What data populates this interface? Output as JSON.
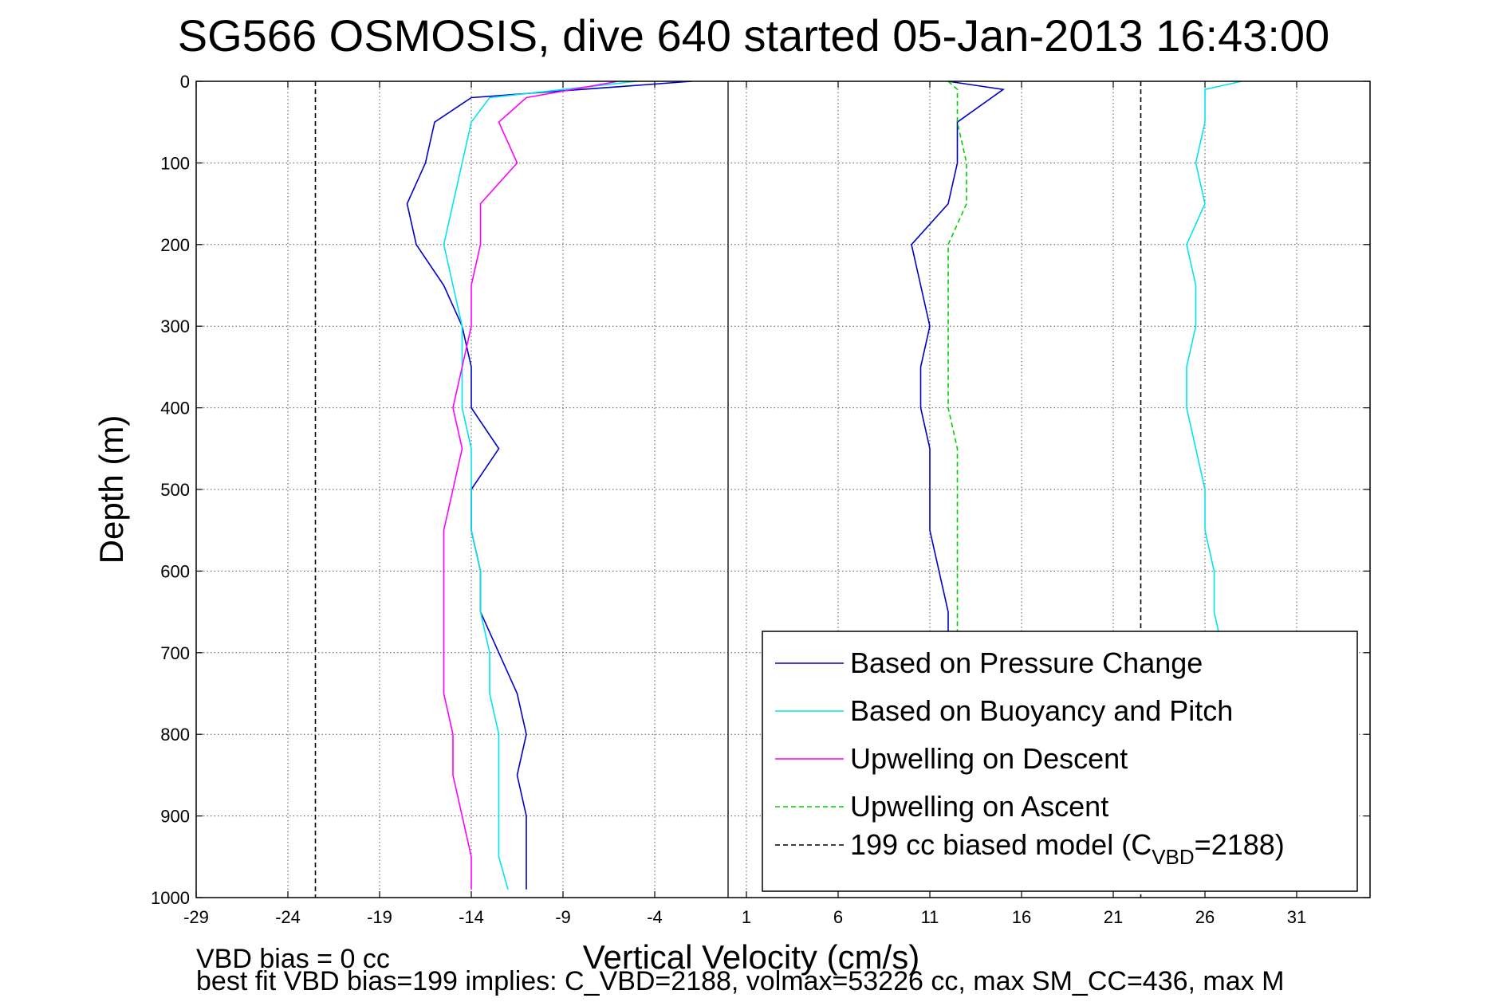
{
  "chart_data": {
    "type": "line",
    "title": "SG566 OSMOSIS, dive 640 started 05-Jan-2013 16:43:00",
    "xlabel": "Vertical Velocity (cm/s)",
    "ylabel": "Depth (m)",
    "xlim": [
      -29,
      35
    ],
    "ylim": [
      0,
      1000
    ],
    "y_reversed": true,
    "grid": true,
    "xticks": [
      -29,
      -24,
      -19,
      -14,
      -9,
      -4,
      1,
      6,
      11,
      16,
      21,
      26,
      31
    ],
    "yticks": [
      0,
      100,
      200,
      300,
      400,
      500,
      600,
      700,
      800,
      900,
      1000
    ],
    "legend_position": "bottom-right",
    "legend": {
      "pressure": "Based on Pressure Change",
      "buoyancy": "Based on Buoyancy and Pitch",
      "up_descent": "Upwelling on Descent",
      "up_ascent": "Upwelling on Ascent",
      "model_prefix": "199 cc biased model (C",
      "model_sub": "VBD",
      "model_suffix": "=2188)"
    },
    "series": [
      {
        "key": "pressure_descent",
        "legend_key": "pressure",
        "color": "#0000c8",
        "style": "solid",
        "depth": [
          0,
          20,
          50,
          100,
          150,
          200,
          250,
          300,
          350,
          400,
          450,
          500,
          550,
          600,
          650,
          700,
          750,
          800,
          850,
          900,
          950,
          990
        ],
        "velocity": [
          -2,
          -14,
          -16,
          -16.5,
          -17.5,
          -17,
          -15.5,
          -14.5,
          -14,
          -14,
          -12.5,
          -14,
          -14,
          -13.5,
          -13.5,
          -12.5,
          -11.5,
          -11,
          -11.5,
          -11,
          -11,
          -11
        ]
      },
      {
        "key": "pressure_ascent",
        "legend_key": "pressure",
        "color": "#0000c8",
        "style": "solid",
        "depth": [
          0,
          10,
          50,
          100,
          150,
          200,
          250,
          300,
          350,
          400,
          450,
          500,
          550,
          600,
          650,
          700,
          750,
          800,
          850,
          900,
          950,
          990
        ],
        "velocity": [
          12,
          15,
          12.5,
          12.5,
          12,
          10,
          10.5,
          11,
          10.5,
          10.5,
          11,
          11,
          11,
          11.5,
          12,
          12,
          12,
          12.5,
          13,
          13.5,
          14,
          14
        ]
      },
      {
        "key": "buoyancy_descent",
        "legend_key": "buoyancy",
        "color": "#00e5ee",
        "style": "solid",
        "depth": [
          0,
          20,
          50,
          100,
          150,
          200,
          250,
          300,
          350,
          400,
          450,
          500,
          550,
          600,
          650,
          700,
          750,
          800,
          850,
          900,
          950,
          990
        ],
        "velocity": [
          -5,
          -13,
          -14,
          -14.5,
          -15,
          -15.5,
          -15,
          -14.5,
          -14.5,
          -14.5,
          -14,
          -14,
          -14,
          -13.5,
          -13.5,
          -13,
          -13,
          -12.5,
          -12.5,
          -12.5,
          -12.5,
          -12
        ]
      },
      {
        "key": "buoyancy_ascent",
        "legend_key": "buoyancy",
        "color": "#00e5ee",
        "style": "solid",
        "depth": [
          0,
          10,
          50,
          100,
          150,
          200,
          250,
          300,
          350,
          400,
          450,
          500,
          550,
          600,
          650,
          700,
          750,
          800,
          850,
          900,
          950,
          990
        ],
        "velocity": [
          28,
          26,
          26,
          25.5,
          26,
          25,
          25.5,
          25.5,
          25,
          25,
          25.5,
          26,
          26,
          26.5,
          26.5,
          27,
          27,
          27,
          27,
          27,
          27,
          27
        ]
      },
      {
        "key": "up_descent",
        "legend_key": "up_descent",
        "color": "#ff00ff",
        "style": "solid",
        "depth": [
          0,
          20,
          50,
          100,
          150,
          200,
          250,
          300,
          350,
          400,
          450,
          500,
          550,
          600,
          650,
          700,
          750,
          800,
          850,
          900,
          950,
          990
        ],
        "velocity": [
          -6,
          -11,
          -12.5,
          -11.5,
          -13.5,
          -13.5,
          -14,
          -14,
          -14.5,
          -15,
          -14.5,
          -15,
          -15.5,
          -15.5,
          -15.5,
          -15.5,
          -15.5,
          -15,
          -15,
          -14.5,
          -14,
          -14
        ]
      },
      {
        "key": "up_ascent",
        "legend_key": "up_ascent",
        "color": "#00d000",
        "style": "dashed",
        "depth": [
          0,
          10,
          50,
          100,
          150,
          200,
          250,
          300,
          350,
          400,
          450,
          500,
          550,
          600,
          650,
          700,
          750,
          800,
          850,
          900,
          950,
          990
        ],
        "velocity": [
          12,
          12.5,
          12.5,
          13,
          13,
          12,
          12,
          12,
          12,
          12,
          12.5,
          12.5,
          12.5,
          12.5,
          12.5,
          12.5,
          12.5,
          12.5,
          12.5,
          12.5,
          12.5,
          12.5
        ]
      },
      {
        "key": "model_neg",
        "legend_key": "model",
        "color": "#000000",
        "style": "dashed",
        "depth": [
          0,
          1000
        ],
        "velocity": [
          -22.5,
          -22.5
        ]
      },
      {
        "key": "model_pos",
        "legend_key": "model",
        "color": "#000000",
        "style": "dashed",
        "depth": [
          0,
          1000
        ],
        "velocity": [
          22.5,
          22.5
        ]
      }
    ],
    "reference_line": {
      "x": 0,
      "color": "#000000"
    },
    "footnotes": {
      "line1": "VBD bias = 0 cc",
      "line2": "best fit VBD bias=199 implies: C_VBD=2188, volmax=53226 cc, max SM_CC=436, max M"
    }
  }
}
